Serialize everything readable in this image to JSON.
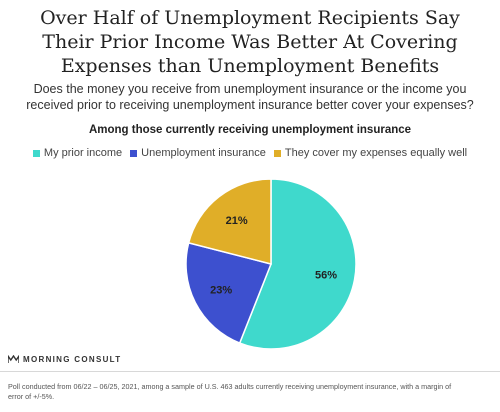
{
  "title_line1": "Over Half of Unemployment Recipients Say",
  "title_line2": "Their Prior Income Was Better At Covering",
  "title_line3": "Expenses than Unemployment Benefits",
  "subtitle_line1": "Does the money you receive from unemployment insurance or the income you",
  "subtitle_line2": "received prior to receiving unemployment insurance better cover your expenses?",
  "section_label": "Among those currently receiving unemployment insurance",
  "brand": "MORNING CONSULT",
  "footnote_line1": "Poll conducted from 06/22 – 06/25, 2021, among a sample of U.S. 463 adults currently receiving unemployment insurance, with a margin of",
  "footnote_line2": "error of +/-5%.",
  "chart_data": {
    "type": "pie",
    "title": "",
    "slices": [
      {
        "label": "My prior income",
        "value": 56,
        "display": "56%",
        "color": "#3fd9cc"
      },
      {
        "label": "Unemployment insurance",
        "value": 23,
        "display": "23%",
        "color": "#3d50cf"
      },
      {
        "label": "They cover my expenses equally well",
        "value": 21,
        "display": "21%",
        "color": "#e0ae28"
      }
    ],
    "legend_position": "top"
  }
}
